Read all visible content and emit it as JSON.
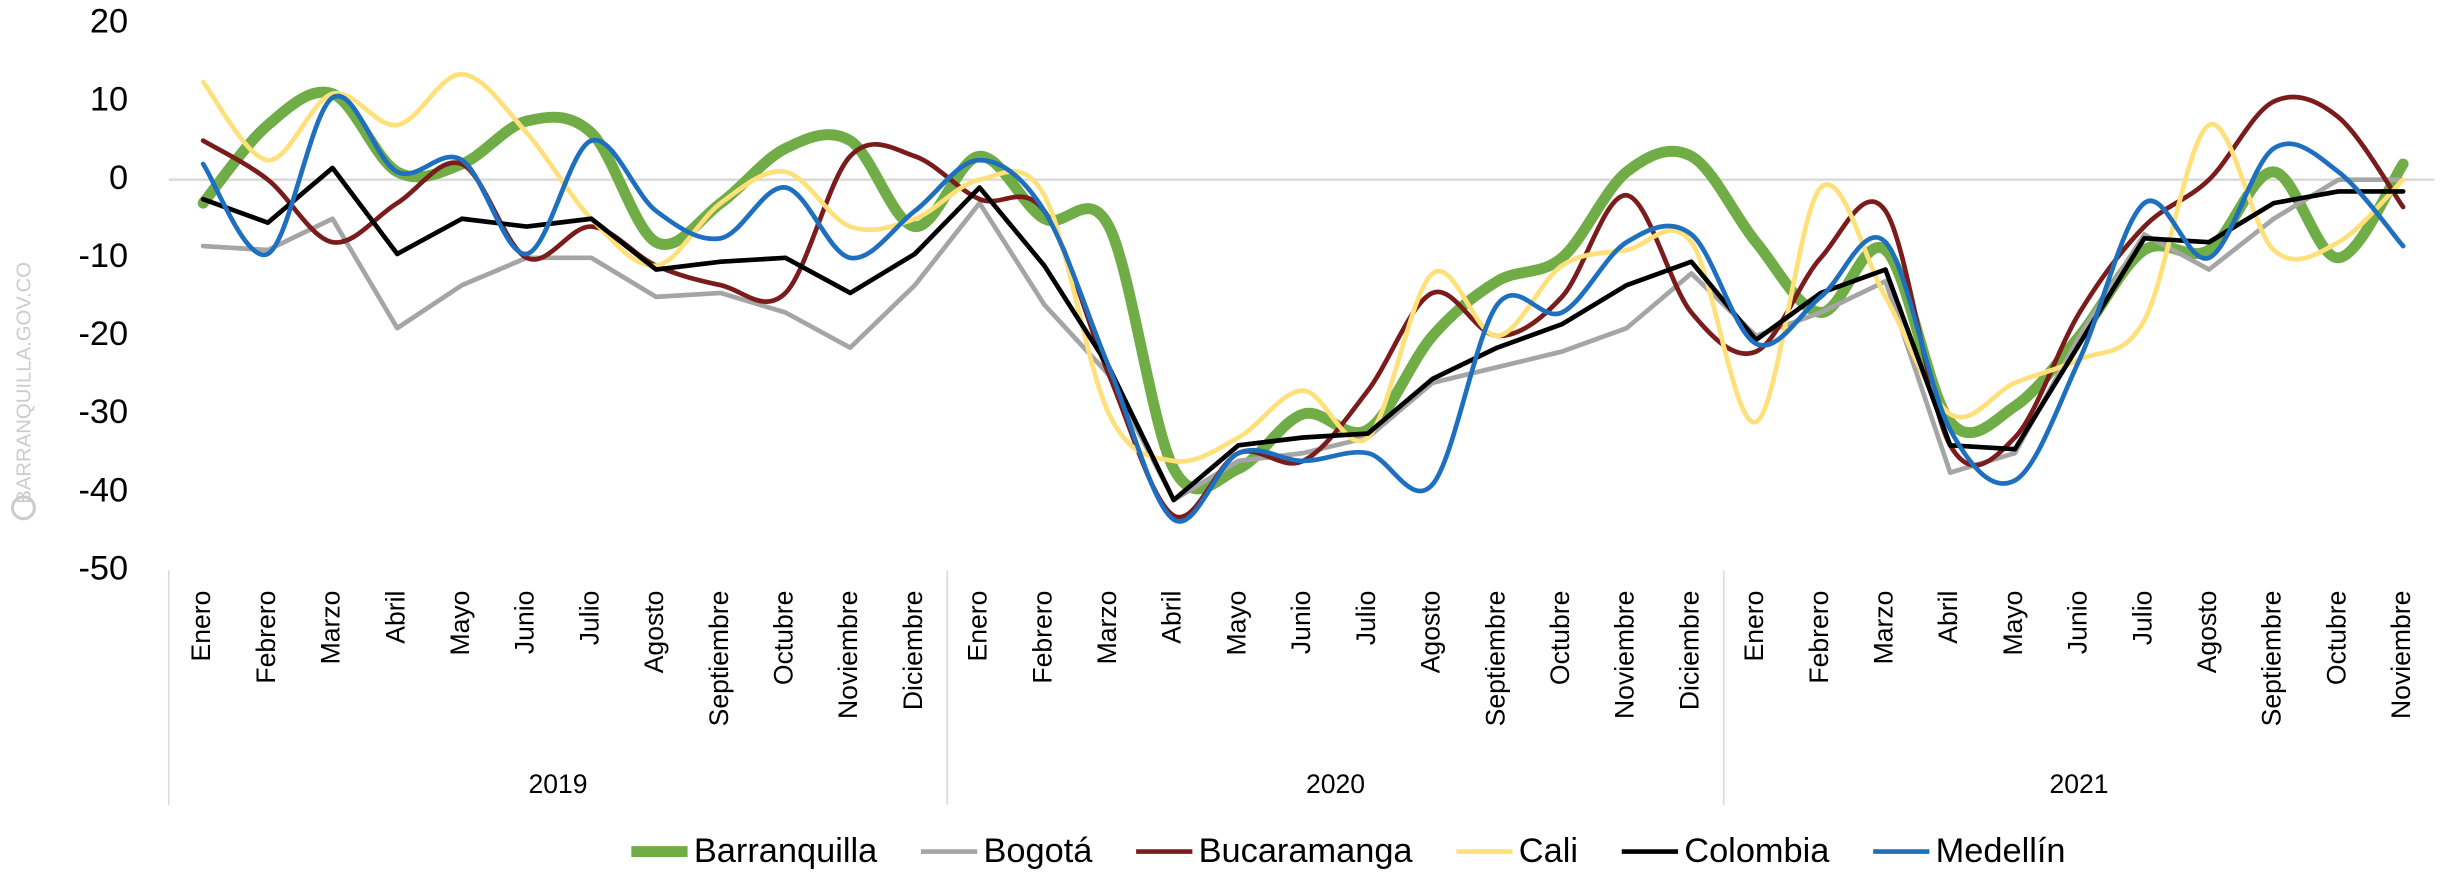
{
  "chart_data": {
    "type": "line",
    "watermark": "BARRANQUILLA.GOV.CO",
    "categories": [
      "Enero",
      "Febrero",
      "Marzo",
      "Abril",
      "Mayo",
      "Junio",
      "Julio",
      "Agosto",
      "Septiembre",
      "Octubre",
      "Noviembre",
      "Diciembre",
      "Enero",
      "Febrero",
      "Marzo",
      "Abril",
      "Mayo",
      "Junio",
      "Julio",
      "Agosto",
      "Septiembre",
      "Octubre",
      "Noviembre",
      "Diciembre",
      "Enero",
      "Febrero",
      "Marzo",
      "Abril",
      "Mayo",
      "Junio",
      "Julio",
      "Agosto",
      "Septiembre",
      "Octubre",
      "Noviembre"
    ],
    "category_groups": [
      "2019",
      "2020",
      "2021"
    ],
    "ylim": [
      -50,
      20
    ],
    "yticks": [
      20,
      10,
      0,
      -10,
      -20,
      -30,
      -40,
      -50
    ],
    "grid": false,
    "legend": "bottom",
    "series": [
      {
        "name": "Barranquilla",
        "color": "#70ad47",
        "width": 7,
        "smooth": true,
        "values": [
          -3,
          7,
          11,
          1,
          2,
          7.5,
          6,
          -8,
          -3,
          4,
          5,
          -6,
          3,
          -5,
          -6,
          -37,
          -37,
          -30,
          -32,
          -20,
          -13,
          -10,
          1,
          3,
          -8,
          -17,
          -9,
          -31,
          -29,
          -20,
          -9,
          -9,
          1,
          -10,
          2
        ]
      },
      {
        "name": "Bogotá",
        "color": "#a5a5a5",
        "width": 3,
        "smooth": false,
        "values": [
          -8.5,
          -9,
          -5,
          -19,
          -13.5,
          -10,
          -10,
          -15,
          -14.5,
          -17,
          -21.5,
          -13.5,
          -3,
          -16,
          -25,
          -41,
          -36,
          -35,
          -33,
          -26,
          -24,
          -22,
          -19,
          -12,
          -20,
          -17,
          -13,
          -37.5,
          -35,
          -20,
          -7,
          -11.5,
          -5,
          0,
          0
        ]
      },
      {
        "name": "Bucaramanga",
        "color": "#7b1c1c",
        "width": 3,
        "smooth": true,
        "values": [
          5,
          0,
          -8,
          -3,
          2,
          -10,
          -6,
          -11,
          -13.5,
          -14.5,
          3,
          3,
          -2.5,
          -4,
          -25,
          -43,
          -35,
          -36,
          -27,
          -14.5,
          -20,
          -15,
          -2,
          -17,
          -22,
          -10,
          -4,
          -34,
          -33,
          -17,
          -6,
          0,
          10,
          8,
          -3.5
        ]
      },
      {
        "name": "Cali",
        "color": "#ffe07a",
        "width": 3,
        "smooth": true,
        "values": [
          12.5,
          2.5,
          11,
          7,
          13.5,
          6,
          -5,
          -11,
          -3,
          1,
          -6,
          -5,
          0,
          -2,
          -30,
          -36,
          -33,
          -27,
          -33,
          -12,
          -20,
          -11,
          -9,
          -8,
          -31,
          -1,
          -15,
          -30,
          -26,
          -23,
          -18,
          7,
          -9,
          -8,
          0
        ]
      },
      {
        "name": "Colombia",
        "color": "#000000",
        "width": 3,
        "smooth": false,
        "values": [
          -2.5,
          -5.5,
          1.5,
          -9.5,
          -5,
          -6,
          -5,
          -11.5,
          -10.5,
          -10,
          -14.5,
          -9.5,
          -1,
          -11,
          -24,
          -41,
          -34,
          -33,
          -32.5,
          -25.5,
          -21.5,
          -18.5,
          -13.5,
          -10.5,
          -20.5,
          -14.5,
          -11.5,
          -34,
          -34.5,
          -21,
          -7.5,
          -8,
          -3,
          -1.5,
          -1.5
        ]
      },
      {
        "name": "Medellín",
        "color": "#1f6fbf",
        "width": 3,
        "smooth": true,
        "values": [
          2,
          -9.5,
          10.5,
          1,
          2.5,
          -9.5,
          5,
          -4,
          -7.5,
          -1,
          -10,
          -4,
          2.5,
          -4,
          -24,
          -43.5,
          -35,
          -36,
          -35,
          -39,
          -16,
          -17,
          -8,
          -7,
          -21,
          -15,
          -8,
          -32,
          -38.5,
          -23,
          -3,
          -10,
          4,
          1,
          -8.5
        ]
      }
    ]
  }
}
